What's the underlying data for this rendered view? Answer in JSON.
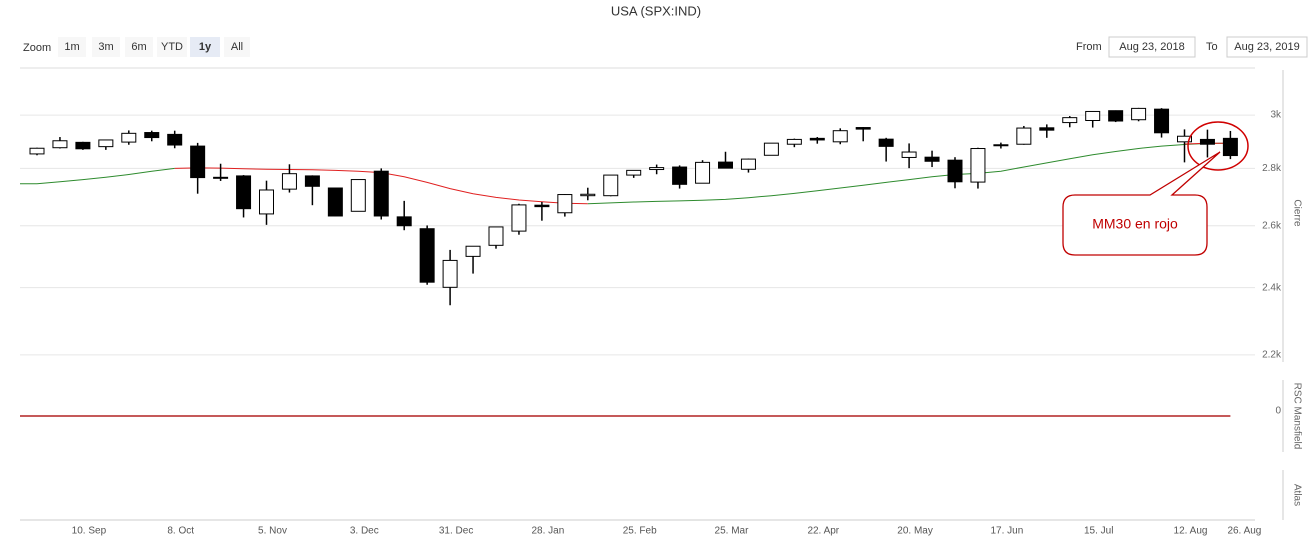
{
  "title": "USA (SPX:IND)",
  "range_selector": {
    "label": "Zoom",
    "buttons": [
      "1m",
      "3m",
      "6m",
      "YTD",
      "1y",
      "All"
    ],
    "selected": 4
  },
  "date_range": {
    "from_label": "From",
    "from": "Aug 23, 2018",
    "to_label": "To",
    "to": "Aug 23, 2019"
  },
  "chart_data": [
    {
      "type": "candlestick",
      "axis_title": "Cierre",
      "log_scale": true,
      "grid": true,
      "up_color": "#ffffff",
      "down_color": "#000000",
      "categories": [
        null,
        null,
        "10. Sep",
        null,
        null,
        null,
        "8. Oct",
        null,
        null,
        null,
        "5. Nov",
        null,
        null,
        null,
        "3. Dec",
        null,
        null,
        null,
        "31. Dec",
        null,
        null,
        null,
        "28. Jan",
        null,
        null,
        null,
        "25. Feb",
        null,
        null,
        null,
        "25. Mar",
        null,
        null,
        null,
        "22. Apr",
        null,
        null,
        null,
        "20. May",
        null,
        null,
        null,
        "17. Jun",
        null,
        null,
        null,
        "15. Jul",
        null,
        null,
        null,
        "12. Aug",
        null,
        "26. Aug"
      ],
      "open": [
        2853,
        2876,
        2896,
        2880,
        2897,
        2933,
        2926,
        2882,
        2768,
        2773,
        2640,
        2726,
        2773,
        2730,
        2649,
        2790,
        2630,
        2590,
        2401,
        2499,
        2535,
        2582,
        2670,
        2644,
        2703,
        2703,
        2776,
        2796,
        2805,
        2747,
        2823,
        2797,
        2848,
        2889,
        2911,
        2898,
        2952,
        2908,
        2840,
        2841,
        2830,
        2751,
        2886,
        2889,
        2951,
        2971,
        2979,
        3017,
        2982,
        3023,
        2898,
        2907,
        2911
      ],
      "high": [
        2876,
        2916,
        2898,
        2906,
        2941,
        2940,
        2940,
        2894,
        2817,
        2776,
        2756,
        2815,
        2775,
        2731,
        2760,
        2800,
        2685,
        2601,
        2520,
        2532,
        2597,
        2675,
        2681,
        2708,
        2731,
        2776,
        2794,
        2814,
        2811,
        2830,
        2861,
        2836,
        2893,
        2910,
        2916,
        2949,
        2954,
        2913,
        2892,
        2865,
        2841,
        2876,
        2895,
        2958,
        2964,
        2996,
        3014,
        3018,
        3028,
        3027,
        2945,
        2944,
        2939
      ],
      "low": [
        2848,
        2873,
        2868,
        2868,
        2887,
        2900,
        2874,
        2710,
        2755,
        2628,
        2603,
        2714,
        2670,
        2632,
        2649,
        2621,
        2585,
        2409,
        2346,
        2444,
        2524,
        2570,
        2617,
        2631,
        2687,
        2701,
        2766,
        2779,
        2728,
        2746,
        2800,
        2785,
        2848,
        2878,
        2891,
        2889,
        2900,
        2825,
        2801,
        2805,
        2729,
        2728,
        2873,
        2887,
        2913,
        2953,
        2952,
        2973,
        2976,
        2914,
        2822,
        2840,
        2834
      ],
      "close": [
        2874,
        2902,
        2872,
        2905,
        2930,
        2914,
        2886,
        2767,
        2767,
        2658,
        2723,
        2781,
        2736,
        2633,
        2760,
        2633,
        2600,
        2417,
        2486,
        2532,
        2596,
        2671,
        2665,
        2707,
        2708,
        2776,
        2793,
        2803,
        2743,
        2822,
        2801,
        2834,
        2893,
        2907,
        2905,
        2940,
        2946,
        2881,
        2860,
        2826,
        2752,
        2873,
        2887,
        2950,
        2942,
        2990,
        3014,
        2977,
        3026,
        2932,
        2919,
        2889,
        2847
      ],
      "series": [
        {
          "color": "#2e8b2e",
          "values": [
            2745,
            2752,
            2760,
            2768,
            2778,
            2790,
            2800,
            null,
            null,
            null,
            null,
            null,
            null,
            null,
            null,
            null,
            null,
            null,
            null,
            null,
            null,
            null,
            null,
            null,
            2675,
            2678,
            2681,
            2683,
            2685,
            2687,
            2690,
            2696,
            2703,
            2711,
            2720,
            2730,
            2740,
            2750,
            2760,
            2770,
            2778,
            2782,
            2790,
            2805,
            2820,
            2835,
            2850,
            2862,
            2873,
            2882,
            2888,
            2892,
            2893
          ]
        },
        {
          "color": "#e02020",
          "values": [
            null,
            null,
            null,
            null,
            null,
            null,
            2800,
            2802,
            2801,
            2799,
            2797,
            2796,
            2795,
            2793,
            2790,
            2785,
            2770,
            2750,
            2728,
            2710,
            2697,
            2688,
            2682,
            2677,
            2675,
            null,
            null,
            null,
            null,
            null,
            null,
            null,
            null,
            null,
            null,
            null,
            null,
            null,
            null,
            null,
            null,
            null,
            null,
            null,
            null,
            null,
            null,
            null,
            null,
            null,
            2890,
            2893,
            2893
          ]
        }
      ],
      "ylim": [
        2180,
        3180
      ],
      "yticks": [
        {
          "value": 2200,
          "label": "2.2k"
        },
        {
          "value": 2400,
          "label": "2.4k"
        },
        {
          "value": 2600,
          "label": "2.6k"
        },
        {
          "value": 2800,
          "label": "2.8k"
        },
        {
          "value": 3000,
          "label": "3k"
        }
      ],
      "annotation": "MM30 en rojo"
    },
    {
      "type": "line",
      "axis_title": "RSC Mansfield",
      "color": "#b22222",
      "values": [
        0,
        0,
        0,
        0,
        0,
        0,
        0,
        0,
        0,
        0,
        0,
        0,
        0,
        0,
        0,
        0,
        0,
        0,
        0,
        0,
        0,
        0,
        0,
        0,
        0,
        0,
        0,
        0,
        0,
        0,
        0,
        0,
        0,
        0,
        0,
        0,
        0,
        0,
        0,
        0,
        0,
        0,
        0,
        0,
        0,
        0,
        0,
        0,
        0,
        0,
        0,
        0,
        0
      ],
      "ylim": [
        -1,
        1
      ],
      "yticks": [
        0
      ]
    },
    {
      "type": "empty",
      "axis_title": "Atlas"
    }
  ]
}
